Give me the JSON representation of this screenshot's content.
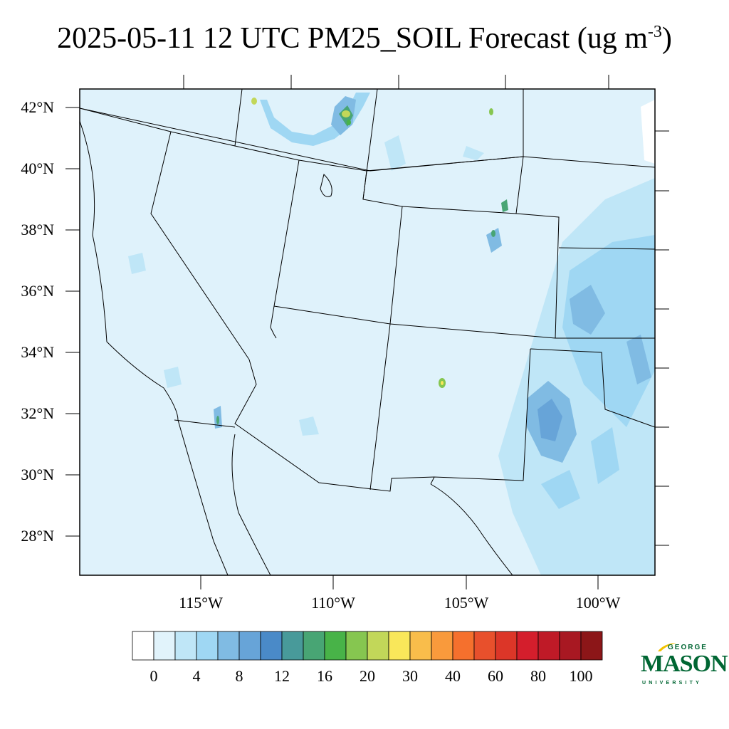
{
  "title": {
    "main": "2025-05-11 12 UTC PM25_SOIL Forecast (ug m",
    "sup": "-3",
    "close": ")"
  },
  "lat_labels": [
    "42°N",
    "40°N",
    "38°N",
    "36°N",
    "34°N",
    "32°N",
    "30°N",
    "28°N"
  ],
  "lon_labels": [
    "115°W",
    "110°W",
    "105°W",
    "100°W"
  ],
  "colorbar": {
    "colors": [
      "#ffffff",
      "#e1f3fb",
      "#bfe6f7",
      "#9fd7f3",
      "#80bbe3",
      "#67a4d8",
      "#4a8ac8",
      "#489a9a",
      "#48a574",
      "#48b348",
      "#86c650",
      "#c2d759",
      "#f9e75a",
      "#f9bd4b",
      "#f99a3c",
      "#f5702d",
      "#e8502c",
      "#dc3628",
      "#d41e2c",
      "#bf1a27",
      "#a81822",
      "#8c1618"
    ],
    "labels": [
      "0",
      "4",
      "8",
      "12",
      "16",
      "20",
      "30",
      "40",
      "60",
      "80",
      "100"
    ]
  },
  "logo": {
    "line1": "GEORGE",
    "line2": "MASON",
    "line3": "UNIVERSITY",
    "color": "#006633",
    "accent": "#f2c200"
  },
  "colors": {
    "background_field": "#dff2fb",
    "light_blue": "#bfe6f7",
    "mid_blue": "#9fd7f3",
    "dark_blue": "#80bbe3",
    "deep_blue": "#67a4d8"
  }
}
